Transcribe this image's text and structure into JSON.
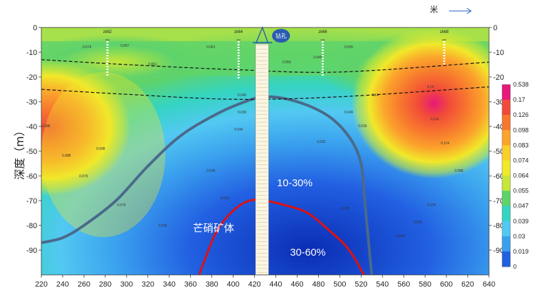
{
  "chart_data": {
    "type": "heatmap",
    "ylabel": "深度（m）",
    "x_unit_label": "米",
    "xlim": [
      220,
      640
    ],
    "ylim": [
      0,
      -100
    ],
    "x_ticks": [
      220,
      240,
      260,
      280,
      300,
      320,
      340,
      360,
      380,
      400,
      420,
      440,
      460,
      480,
      500,
      520,
      540,
      560,
      580,
      600,
      620,
      640
    ],
    "y_ticks": [
      0,
      -10,
      -20,
      -30,
      -40,
      -50,
      -60,
      -70,
      -80,
      -90
    ],
    "colorbar": {
      "ticks": [
        "0.538",
        "0.17",
        "0.126",
        "0.098",
        "0.083",
        "0.074",
        "0.064",
        "0.055",
        "0.047",
        "0.039",
        "0.03",
        "0.019",
        "0"
      ],
      "colors": [
        "#e7197a",
        "#f24a3a",
        "#f7772e",
        "#fba32c",
        "#f9cf2a",
        "#f1e82a",
        "#c6e63a",
        "#5fd36a",
        "#35d4c2",
        "#52c8f2",
        "#3aa0ee",
        "#2260e2",
        "#0a2db4"
      ]
    },
    "wells": [
      {
        "name": "zk62",
        "x": 282,
        "bottom_depth": -20
      },
      {
        "name": "zk64",
        "x": 405,
        "bottom_depth": -21
      },
      {
        "name": "zk66",
        "x": 484,
        "bottom_depth": -20
      },
      {
        "name": "zk68",
        "x": 598,
        "bottom_depth": -15
      }
    ],
    "borehole": {
      "label": "钻孔",
      "x": 428
    },
    "zone_labels": [
      "10-30%",
      "30-60%",
      "芒硝矿体"
    ],
    "contour_labels": [
      "0.074",
      "0.067",
      "0.061",
      "0.055",
      "0.049",
      "0.039",
      "0.034",
      "0.025",
      "0.088",
      "0.098",
      "0.114",
      "0.14",
      "0.079",
      "0.046"
    ],
    "dashed_boundaries": [
      {
        "x": [
          220,
          300,
          400,
          500,
          640
        ],
        "y": [
          -13,
          -15,
          -17,
          -18,
          -14
        ]
      },
      {
        "x": [
          220,
          300,
          400,
          500,
          640
        ],
        "y": [
          -25,
          -27,
          -29,
          -28,
          -24
        ]
      }
    ],
    "ore_body_outer": {
      "x": [
        220,
        240,
        260,
        290,
        320,
        350,
        380,
        405,
        430,
        460,
        490,
        510,
        520,
        523,
        526,
        530
      ],
      "y": [
        -87,
        -85,
        -80,
        -70,
        -56,
        -44,
        -36,
        -31,
        -28,
        -30,
        -36,
        -45,
        -55,
        -68,
        -82,
        -100
      ]
    },
    "ore_body_inner": {
      "x": [
        368,
        375,
        385,
        400,
        415,
        430,
        450,
        470,
        490,
        505,
        515,
        520,
        523
      ],
      "y": [
        -100,
        -92,
        -82,
        -74,
        -70,
        -70,
        -72,
        -75,
        -82,
        -88,
        -94,
        -98,
        -100
      ]
    }
  }
}
